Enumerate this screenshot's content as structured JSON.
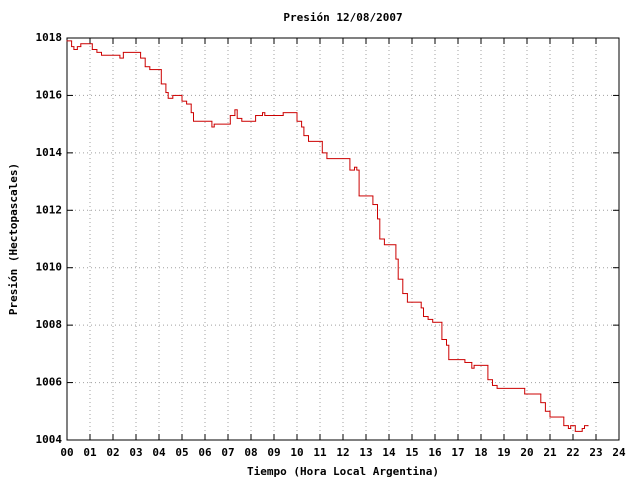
{
  "chart_data": {
    "type": "step",
    "title": "Presión 12/08/2007",
    "xlabel": "Tiempo (Hora Local Argentina)",
    "ylabel": "Presión (Hectopascales)",
    "xlim": [
      0,
      24
    ],
    "ylim": [
      1004,
      1018
    ],
    "xticks": [
      {
        "value": 0,
        "label": "00"
      },
      {
        "value": 1,
        "label": "01"
      },
      {
        "value": 2,
        "label": "02"
      },
      {
        "value": 3,
        "label": "03"
      },
      {
        "value": 4,
        "label": "04"
      },
      {
        "value": 5,
        "label": "05"
      },
      {
        "value": 6,
        "label": "06"
      },
      {
        "value": 7,
        "label": "07"
      },
      {
        "value": 8,
        "label": "08"
      },
      {
        "value": 9,
        "label": "09"
      },
      10,
      11,
      12,
      13,
      14,
      15,
      16,
      17,
      18,
      19,
      20,
      21,
      22,
      23,
      24
    ],
    "yticks": [
      1004,
      1006,
      1008,
      1010,
      1012,
      1014,
      1016,
      1018
    ],
    "grid": true,
    "color": "#cc0000",
    "x": [
      0,
      0.2,
      0.3,
      0.45,
      0.6,
      1.1,
      1.3,
      1.5,
      2.3,
      2.45,
      3.2,
      3.4,
      3.6,
      4.1,
      4.3,
      4.4,
      4.6,
      5.0,
      5.2,
      5.4,
      5.5,
      6.3,
      6.4,
      7.1,
      7.3,
      7.4,
      7.6,
      8.2,
      8.5,
      8.6,
      9.4,
      10.0,
      10.2,
      10.3,
      10.5,
      11.1,
      11.3,
      12.3,
      12.5,
      12.6,
      12.7,
      13.3,
      13.5,
      13.6,
      13.8,
      14.3,
      14.4,
      14.6,
      14.8,
      15.4,
      15.5,
      15.7,
      15.9,
      16.3,
      16.5,
      16.6,
      17.3,
      17.6,
      17.7,
      18.3,
      18.5,
      18.7,
      19.9,
      20.6,
      20.8,
      21.0,
      21.6,
      21.8,
      21.9,
      22.1,
      22.4,
      22.5,
      22.65
    ],
    "values": [
      1017.9,
      1017.7,
      1017.6,
      1017.7,
      1017.8,
      1017.6,
      1017.5,
      1017.4,
      1017.3,
      1017.5,
      1017.3,
      1017.0,
      1016.9,
      1016.4,
      1016.1,
      1015.9,
      1016.0,
      1015.8,
      1015.7,
      1015.4,
      1015.1,
      1014.9,
      1015.0,
      1015.3,
      1015.5,
      1015.2,
      1015.1,
      1015.3,
      1015.4,
      1015.3,
      1015.4,
      1015.1,
      1014.9,
      1014.6,
      1014.4,
      1014.0,
      1013.8,
      1013.4,
      1013.5,
      1013.4,
      1012.5,
      1012.2,
      1011.7,
      1011.0,
      1010.8,
      1010.3,
      1009.6,
      1009.1,
      1008.8,
      1008.6,
      1008.3,
      1008.2,
      1008.1,
      1007.5,
      1007.3,
      1006.8,
      1006.7,
      1006.5,
      1006.6,
      1006.1,
      1005.9,
      1005.8,
      1005.6,
      1005.3,
      1005.0,
      1004.8,
      1004.5,
      1004.4,
      1004.5,
      1004.3,
      1004.4,
      1004.5,
      1004.5
    ]
  }
}
